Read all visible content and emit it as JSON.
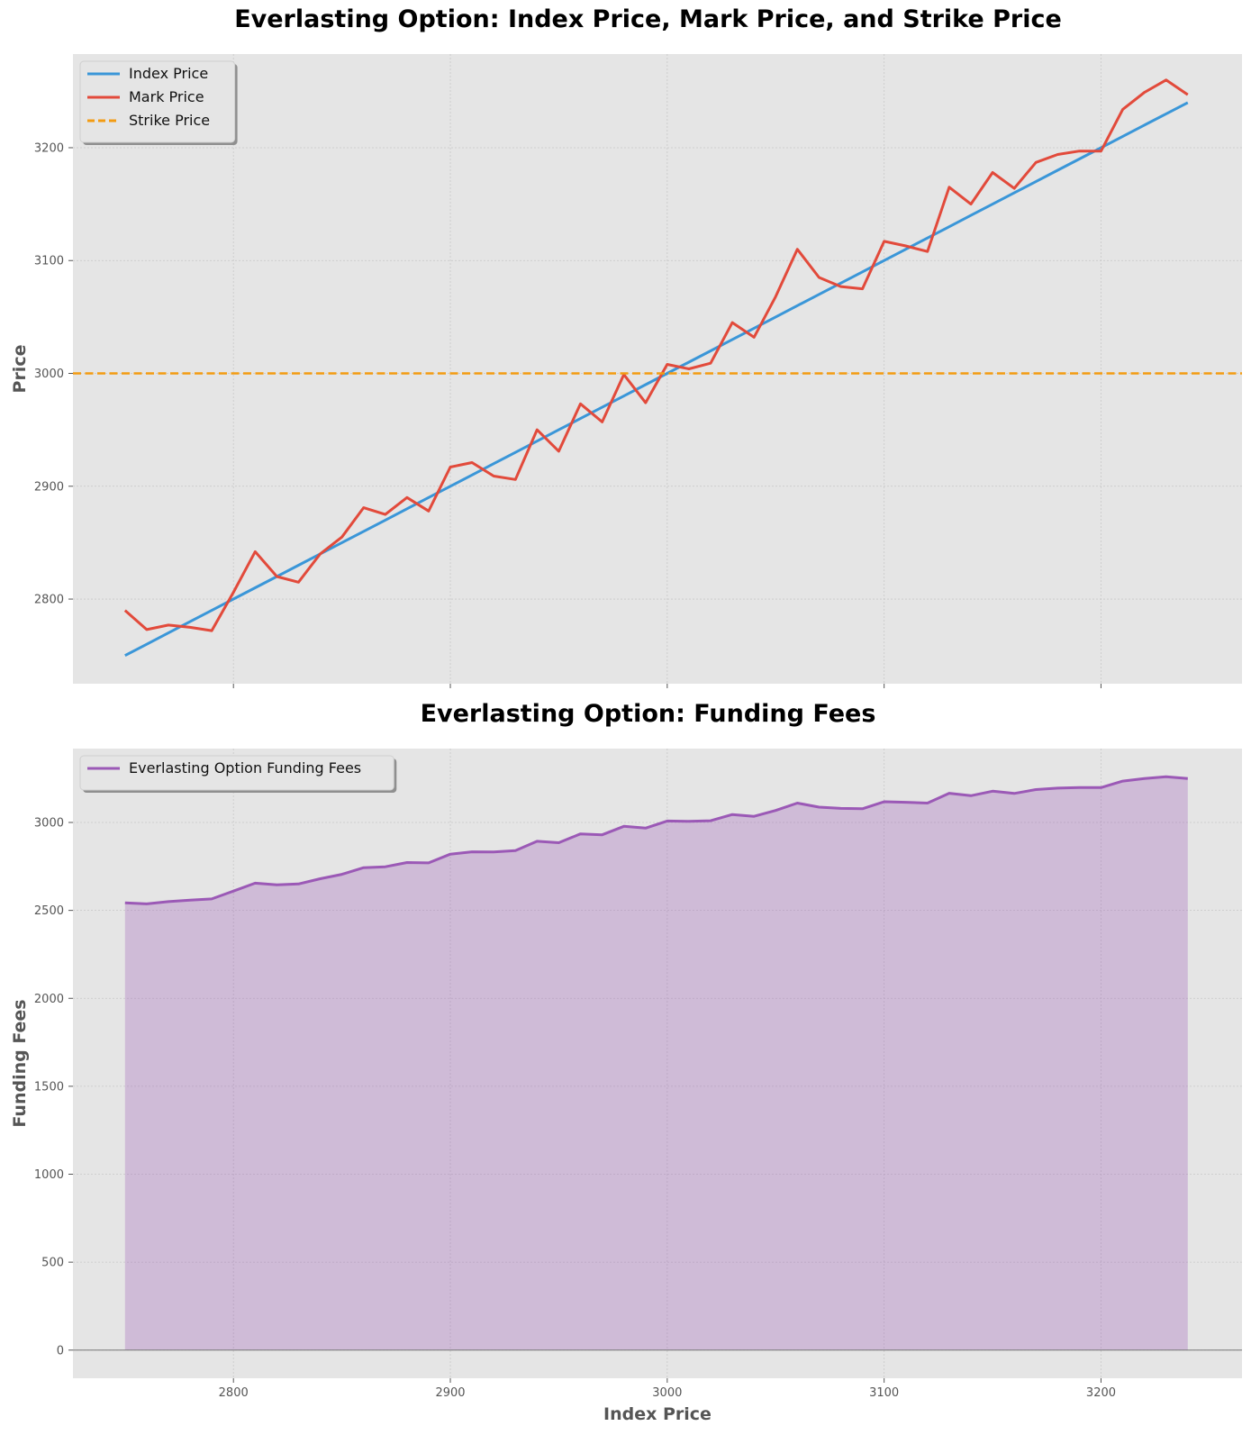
{
  "chart_data": [
    {
      "type": "line",
      "title": "Everlasting Option: Index Price, Mark Price, and Strike Price",
      "xlabel": "",
      "ylabel": "Price",
      "xlim": [
        2726,
        3265
      ],
      "ylim": [
        2725,
        3283
      ],
      "x_ticks": [
        2800,
        2900,
        3000,
        3100,
        3200
      ],
      "x_tick_labels_visible": false,
      "y_ticks": [
        2800,
        2900,
        3000,
        3100,
        3200
      ],
      "grid": true,
      "legend_position": "top-left",
      "x": [
        2750,
        2760,
        2770,
        2780,
        2790,
        2800,
        2810,
        2820,
        2830,
        2840,
        2850,
        2860,
        2870,
        2880,
        2890,
        2900,
        2910,
        2920,
        2930,
        2940,
        2950,
        2960,
        2970,
        2980,
        2990,
        3000,
        3010,
        3020,
        3030,
        3040,
        3050,
        3060,
        3070,
        3080,
        3090,
        3100,
        3110,
        3120,
        3130,
        3140,
        3150,
        3160,
        3170,
        3180,
        3190,
        3200,
        3210,
        3220,
        3230,
        3240
      ],
      "series": [
        {
          "name": "Index Price",
          "style": "solid",
          "color": "#3a96d8",
          "values": [
            2750,
            2760,
            2770,
            2780,
            2790,
            2800,
            2810,
            2820,
            2830,
            2840,
            2850,
            2860,
            2870,
            2880,
            2890,
            2900,
            2910,
            2920,
            2930,
            2940,
            2950,
            2960,
            2970,
            2980,
            2990,
            3000,
            3010,
            3020,
            3030,
            3040,
            3050,
            3060,
            3070,
            3080,
            3090,
            3100,
            3110,
            3120,
            3130,
            3140,
            3150,
            3160,
            3170,
            3180,
            3190,
            3200,
            3210,
            3220,
            3230,
            3240
          ]
        },
        {
          "name": "Mark Price",
          "style": "solid",
          "color": "#e24a3b",
          "values": [
            2790,
            2773,
            2777,
            2775,
            2772,
            2806,
            2842,
            2820,
            2815,
            2840,
            2855,
            2881,
            2875,
            2890,
            2878,
            2917,
            2921,
            2909,
            2906,
            2950,
            2931,
            2973,
            2957,
            2999,
            2974,
            3008,
            3004,
            3009,
            3045,
            3032,
            3068,
            3110,
            3085,
            3077,
            3075,
            3117,
            3113,
            3108,
            3165,
            3150,
            3178,
            3164,
            3187,
            3194,
            3197,
            3197,
            3234,
            3249,
            3260,
            3247
          ]
        },
        {
          "name": "Strike Price",
          "style": "dashed",
          "color": "#f39c12",
          "constant": 3000
        }
      ]
    },
    {
      "type": "area",
      "title": "Everlasting Option: Funding Fees",
      "xlabel": "Index Price",
      "ylabel": "Funding Fees",
      "xlim": [
        2726,
        3265
      ],
      "ylim": [
        -160,
        3420
      ],
      "x_ticks": [
        2800,
        2900,
        3000,
        3100,
        3200
      ],
      "y_ticks": [
        0,
        500,
        1000,
        1500,
        2000,
        2500,
        3000
      ],
      "grid": true,
      "legend_position": "top-left",
      "x": [
        2750,
        2760,
        2770,
        2780,
        2790,
        2800,
        2810,
        2820,
        2830,
        2840,
        2850,
        2860,
        2870,
        2880,
        2890,
        2900,
        2910,
        2920,
        2930,
        2940,
        2950,
        2960,
        2970,
        2980,
        2990,
        3000,
        3010,
        3020,
        3030,
        3040,
        3050,
        3060,
        3070,
        3080,
        3090,
        3100,
        3110,
        3120,
        3130,
        3140,
        3150,
        3160,
        3170,
        3180,
        3190,
        3200,
        3210,
        3220,
        3230,
        3240
      ],
      "series": [
        {
          "name": "Everlasting Option Funding Fees",
          "color": "#9b59b6",
          "values": [
            2543,
            2537,
            2550,
            2558,
            2565,
            2610,
            2655,
            2645,
            2650,
            2680,
            2705,
            2743,
            2748,
            2772,
            2770,
            2820,
            2833,
            2832,
            2840,
            2893,
            2885,
            2935,
            2930,
            2978,
            2968,
            3008,
            3006,
            3010,
            3045,
            3035,
            3068,
            3110,
            3087,
            3080,
            3078,
            3118,
            3115,
            3110,
            3166,
            3152,
            3178,
            3165,
            3187,
            3195,
            3198,
            3198,
            3235,
            3250,
            3260,
            3250
          ]
        }
      ]
    }
  ]
}
